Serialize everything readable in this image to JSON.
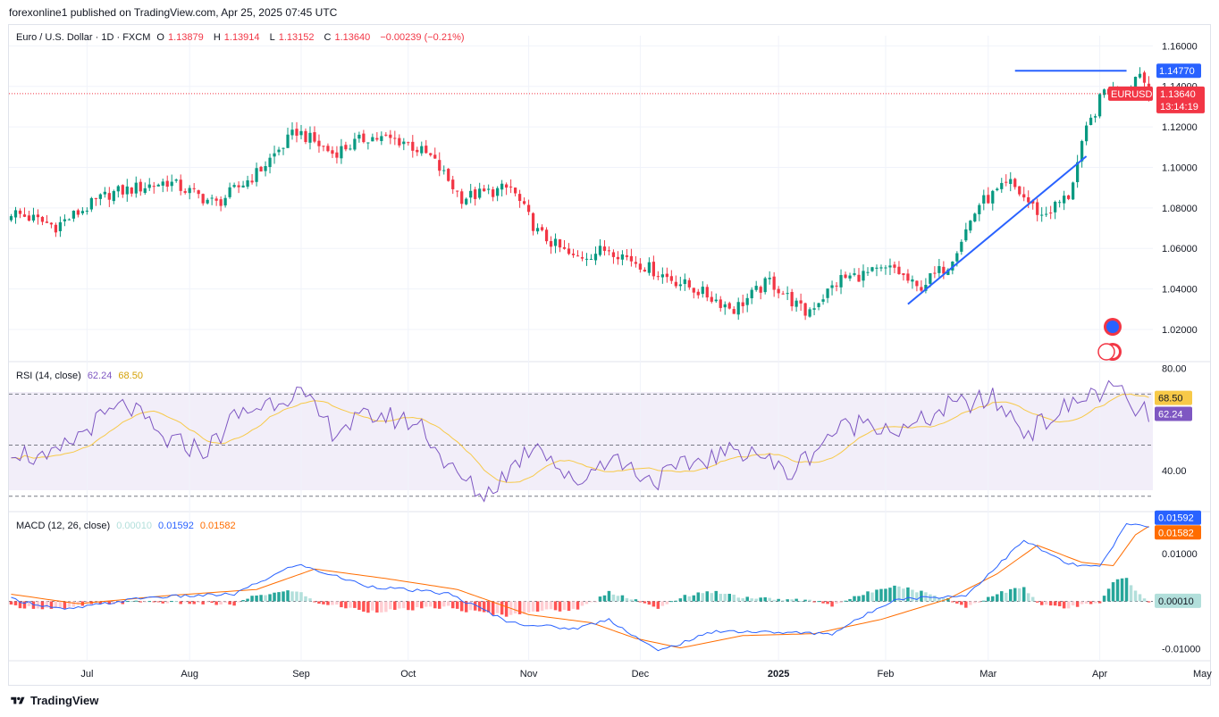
{
  "header": {
    "published": "forexonline1 published on TradingView.com, Apr 25, 2025 07:45 UTC"
  },
  "footer": {
    "brand": "TradingView"
  },
  "legend": {
    "symbol": "Euro / U.S. Dollar · 1D · FXCM",
    "o_label": "O",
    "o": "1.13879",
    "h_label": "H",
    "h": "1.13914",
    "l_label": "L",
    "l": "1.13152",
    "c_label": "C",
    "c": "1.13640",
    "change": "−0.00239 (−0.21%)"
  },
  "rsi_legend": {
    "name": "RSI (14, close)",
    "v1": "62.24",
    "v2": "68.50"
  },
  "macd_legend": {
    "name": "MACD (12, 26, close)",
    "v1": "0.00010",
    "v2": "0.01592",
    "v3": "0.01582"
  },
  "colors": {
    "up": "#089981",
    "down": "#f23645",
    "blue": "#2962ff",
    "orange": "#ff9800",
    "rsi": "#7e57c2",
    "rsi_ma": "#f7c948",
    "price_line": "#f23645"
  },
  "chart_data": {
    "type": "candlestick",
    "symbol": "EURUSD",
    "timeframe": "1D",
    "x_labels": [
      "Jul",
      "Aug",
      "Sep",
      "Oct",
      "Nov",
      "Dec",
      "2025",
      "Feb",
      "Mar",
      "Apr",
      "May"
    ],
    "price_axis": {
      "ticks": [
        "1.16000",
        "1.14000",
        "1.12000",
        "1.10000",
        "1.08000",
        "1.06000",
        "1.04000",
        "1.02000"
      ],
      "range": [
        1.005,
        1.165
      ]
    },
    "price_anchors": [
      [
        0,
        1.078
      ],
      [
        10,
        1.071
      ],
      [
        22,
        1.087
      ],
      [
        35,
        1.093
      ],
      [
        46,
        1.082
      ],
      [
        55,
        1.097
      ],
      [
        64,
        1.118
      ],
      [
        72,
        1.107
      ],
      [
        80,
        1.115
      ],
      [
        88,
        1.113
      ],
      [
        94,
        1.105
      ],
      [
        101,
        1.085
      ],
      [
        112,
        1.09
      ],
      [
        118,
        1.068
      ],
      [
        126,
        1.055
      ],
      [
        134,
        1.06
      ],
      [
        145,
        1.048
      ],
      [
        155,
        1.038
      ],
      [
        162,
        1.03
      ],
      [
        170,
        1.044
      ],
      [
        178,
        1.028
      ],
      [
        186,
        1.045
      ],
      [
        198,
        1.05
      ],
      [
        203,
        1.04
      ],
      [
        210,
        1.052
      ],
      [
        217,
        1.082
      ],
      [
        224,
        1.092
      ],
      [
        231,
        1.076
      ],
      [
        237,
        1.086
      ],
      [
        241,
        1.118
      ],
      [
        245,
        1.138
      ],
      [
        250,
        1.138
      ],
      [
        253,
        1.148
      ],
      [
        255,
        1.136
      ]
    ],
    "candle_count": 256,
    "last_price": "1.13640",
    "last_price_label": "EURUSD",
    "countdown": "13:14:19",
    "level_marker": "1.14770",
    "horizontal_level": 1.1477,
    "trendline": [
      [
        1.0325,
        201
      ],
      [
        1.1055,
        241
      ]
    ],
    "rsi": {
      "period": 14,
      "value": "62.24",
      "ma_value": "68.50",
      "axis_ticks": [
        "80.00",
        "40.00"
      ],
      "bands": [
        70,
        50,
        30
      ],
      "range": [
        25,
        82
      ],
      "anchors": [
        [
          0,
          49
        ],
        [
          8,
          43
        ],
        [
          18,
          58
        ],
        [
          26,
          66
        ],
        [
          34,
          52
        ],
        [
          44,
          48
        ],
        [
          50,
          61
        ],
        [
          58,
          67
        ],
        [
          64,
          71
        ],
        [
          72,
          56
        ],
        [
          82,
          62
        ],
        [
          92,
          58
        ],
        [
          98,
          41
        ],
        [
          106,
          30
        ],
        [
          118,
          52
        ],
        [
          126,
          34
        ],
        [
          134,
          46
        ],
        [
          144,
          36
        ],
        [
          154,
          44
        ],
        [
          166,
          49
        ],
        [
          174,
          38
        ],
        [
          184,
          55
        ],
        [
          192,
          60
        ],
        [
          200,
          55
        ],
        [
          210,
          65
        ],
        [
          220,
          68
        ],
        [
          228,
          55
        ],
        [
          236,
          64
        ],
        [
          242,
          70
        ],
        [
          248,
          72
        ],
        [
          251,
          64
        ],
        [
          255,
          62
        ]
      ]
    },
    "macd": {
      "fast": 12,
      "slow": 26,
      "values": [
        "0.00010",
        "0.01592",
        "0.01582"
      ],
      "axis_ticks": [
        "0.01000",
        "-0.01000"
      ],
      "range": [
        -0.0125,
        0.0185
      ],
      "macd_anchors": [
        [
          0,
          0.0005
        ],
        [
          12,
          -0.0018
        ],
        [
          30,
          0.0008
        ],
        [
          50,
          0.0015
        ],
        [
          64,
          0.0078
        ],
        [
          80,
          0.0032
        ],
        [
          98,
          0.0016
        ],
        [
          112,
          -0.0045
        ],
        [
          126,
          -0.0058
        ],
        [
          134,
          -0.0038
        ],
        [
          145,
          -0.0105
        ],
        [
          158,
          -0.0062
        ],
        [
          170,
          -0.0065
        ],
        [
          184,
          -0.0068
        ],
        [
          198,
          0.0005
        ],
        [
          214,
          0.0012
        ],
        [
          227,
          0.0128
        ],
        [
          237,
          0.0078
        ],
        [
          244,
          0.0072
        ],
        [
          250,
          0.0162
        ],
        [
          255,
          0.0159
        ]
      ],
      "signal_anchors": [
        [
          0,
          0.0015
        ],
        [
          15,
          -0.0005
        ],
        [
          35,
          0.0012
        ],
        [
          55,
          0.0025
        ],
        [
          68,
          0.0068
        ],
        [
          84,
          0.0048
        ],
        [
          100,
          0.0025
        ],
        [
          116,
          -0.0028
        ],
        [
          130,
          -0.0045
        ],
        [
          140,
          -0.0078
        ],
        [
          150,
          -0.0098
        ],
        [
          164,
          -0.0072
        ],
        [
          180,
          -0.0068
        ],
        [
          195,
          -0.0038
        ],
        [
          210,
          0.0005
        ],
        [
          221,
          0.0058
        ],
        [
          230,
          0.0118
        ],
        [
          240,
          0.0082
        ],
        [
          247,
          0.0075
        ],
        [
          252,
          0.014
        ],
        [
          255,
          0.0158
        ]
      ]
    }
  }
}
